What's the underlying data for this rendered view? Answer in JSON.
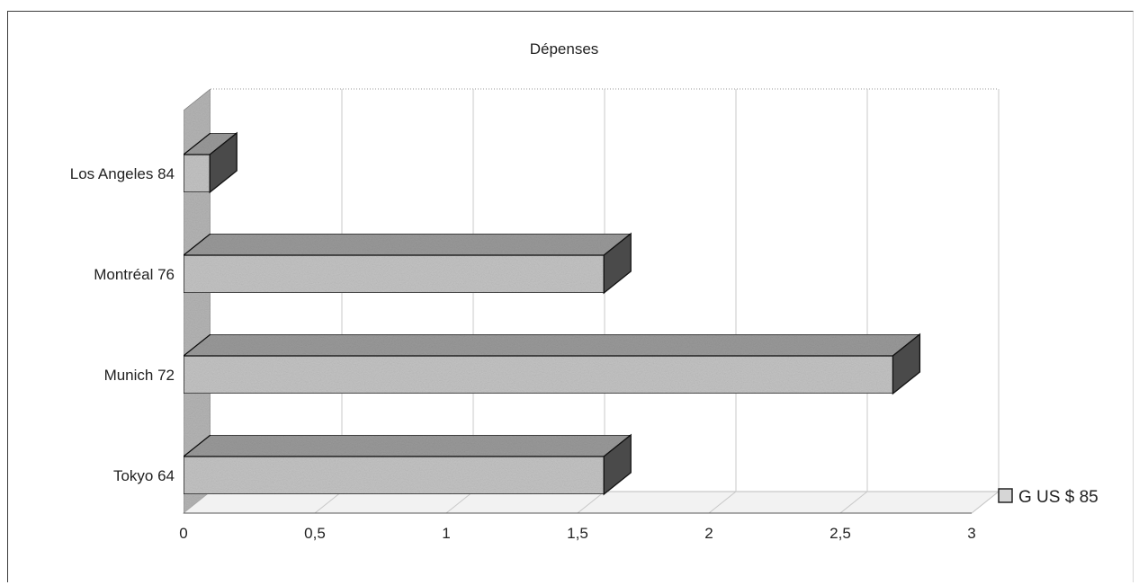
{
  "chart_data": {
    "type": "bar",
    "orientation": "horizontal",
    "style": "3d",
    "title": "Dépenses",
    "xlabel": "",
    "ylabel": "",
    "categories": [
      "Tokyo 64",
      "Munich 72",
      "Montréal 76",
      "Los Angeles 84"
    ],
    "series": [
      {
        "name": "G US $ 85",
        "values": [
          1.6,
          2.7,
          1.6,
          0.1
        ]
      }
    ],
    "xlim": [
      0,
      3
    ],
    "x_ticks": [
      "0",
      "0,5",
      "1",
      "1,5",
      "2",
      "2,5",
      "3"
    ],
    "grid": true,
    "legend_position": "right",
    "colors": {
      "bar_face": "#c4c4c4",
      "bar_top": "#9a9a9a",
      "bar_side": "#4a4a4a",
      "wall": "#b5b5b5",
      "grid": "#c8c8c8"
    }
  }
}
